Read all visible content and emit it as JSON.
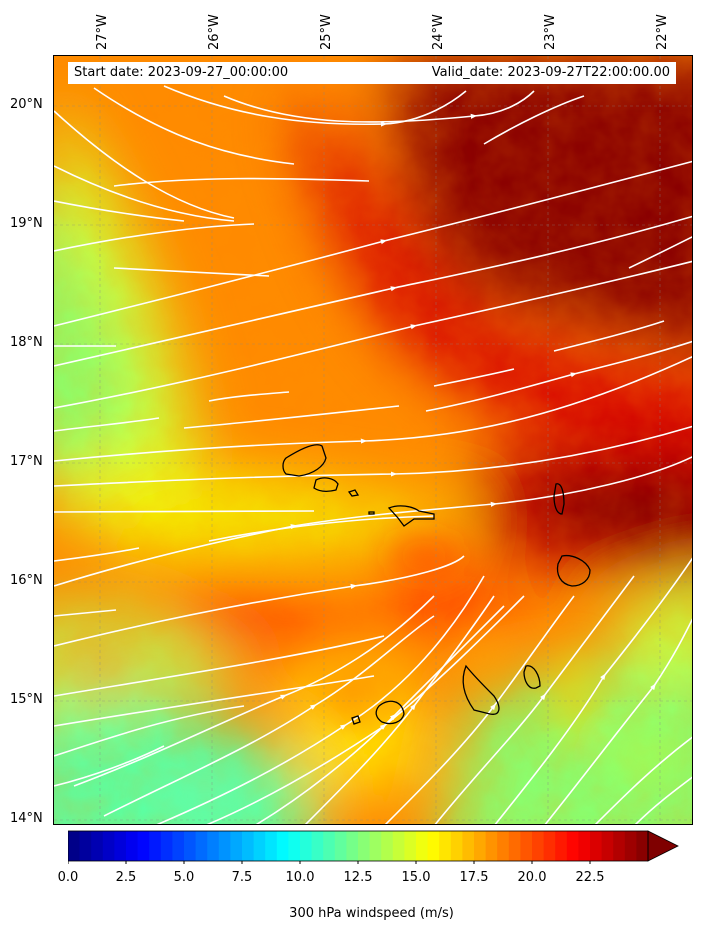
{
  "header": {
    "start_label": "Start date: 2023-09-27_00:00:00",
    "valid_label": "Valid_date: 2023-09-27T22:00:00.00"
  },
  "map": {
    "lon_labels": [
      "27°W",
      "26°W",
      "25°W",
      "24°W",
      "23°W",
      "22°W"
    ],
    "lat_labels": [
      "20°N",
      "19°N",
      "18°N",
      "17°N",
      "16°N",
      "15°N",
      "14°N"
    ],
    "field": "300 hPa windspeed",
    "islands": [
      "Santo Antão",
      "São Vicente",
      "Santa Luzia",
      "São Nicolau",
      "Sal",
      "Boa Vista",
      "Maio",
      "Santiago",
      "Fogo",
      "Brava"
    ]
  },
  "colorbar": {
    "label": "300 hPa windspeed (m/s)",
    "min": 0,
    "max": 25,
    "extend": "max",
    "ticks": [
      "0.0",
      "2.5",
      "5.0",
      "7.5",
      "10.0",
      "12.5",
      "15.0",
      "17.5",
      "20.0",
      "22.5"
    ],
    "colors": [
      "#00007f",
      "#0000ff",
      "#007fff",
      "#00ffff",
      "#7fff7f",
      "#ffff00",
      "#ff7f00",
      "#ff0000",
      "#7f0000"
    ]
  }
}
